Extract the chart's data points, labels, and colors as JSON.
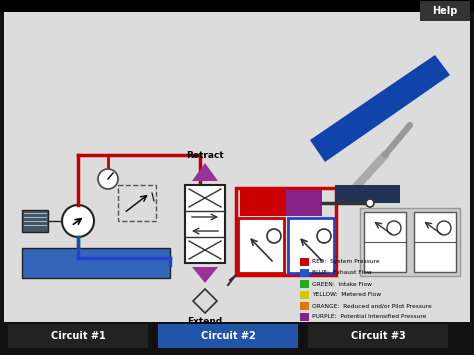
{
  "bg_outer": "#111111",
  "bg_content": "#e8e8e8",
  "bg_bottom": "#111111",
  "help_text": "Help",
  "retract_text": "Retract",
  "extend_text": "Extend",
  "circuit_tabs": [
    "Circuit #1",
    "Circuit #2",
    "Circuit #3"
  ],
  "active_tab": 1,
  "legend_items": [
    {
      "color": "#cc0000",
      "label": "RED:  System Pressure"
    },
    {
      "color": "#2255cc",
      "label": "BLUE:  Exhaust Flow"
    },
    {
      "color": "#22aa22",
      "label": "GREEN:  Intake Flow"
    },
    {
      "color": "#cccc00",
      "label": "YELLOW:  Metered Flow"
    },
    {
      "color": "#dd7700",
      "label": "ORANGE:  Reduced and/or Pilot Pressure"
    },
    {
      "color": "#882288",
      "label": "PURPLE:  Potential Intensified Pressure"
    }
  ],
  "pipe_red": "#bb0000",
  "pipe_blue": "#2244cc",
  "pipe_green": "#22aa22",
  "tank_color": "#3366bb",
  "retract_color": "#993399",
  "extend_color": "#993399",
  "cyl_red": "#cc0000",
  "cyl_purple": "#882288",
  "actuator_blue": "#1144aa",
  "actuator_dark": "#223355"
}
